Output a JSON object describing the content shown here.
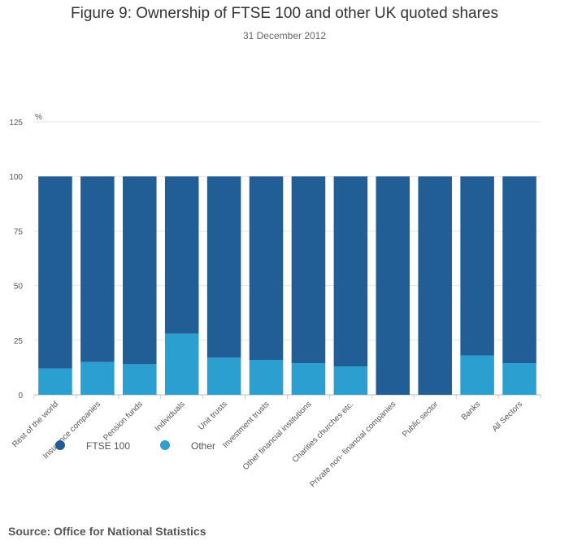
{
  "chart_data": {
    "type": "bar",
    "stacked": true,
    "title": "Figure 9: Ownership of FTSE 100 and other UK quoted shares",
    "subtitle": "31 December 2012",
    "ylabel": "%",
    "ylim": [
      0,
      125
    ],
    "yticks": [
      0,
      25,
      50,
      75,
      100,
      125
    ],
    "categories": [
      "Rest of the world",
      "Insurance companies",
      "Pension funds",
      "Individuals",
      "Unit trusts",
      "Investment trusts",
      "Other financial institutions",
      "Charities churches etc.",
      "Private non- financial companies",
      "Public sector",
      "Banks",
      "All Sectors"
    ],
    "series": [
      {
        "name": "Other",
        "color": "#2b9fcf",
        "values": [
          12,
          15,
          14,
          28,
          17,
          16,
          14.5,
          13,
          0,
          0,
          18,
          14.5
        ]
      },
      {
        "name": "FTSE 100",
        "color": "#215e95",
        "values": [
          88,
          85,
          86,
          72,
          83,
          84,
          85.5,
          87,
          100,
          100,
          82,
          85.5
        ]
      }
    ],
    "legend": [
      {
        "name": "FTSE 100",
        "color": "#215e95"
      },
      {
        "name": "Other",
        "color": "#2b9fcf"
      }
    ],
    "grid": true
  },
  "source": "Source: Office for National Statistics"
}
